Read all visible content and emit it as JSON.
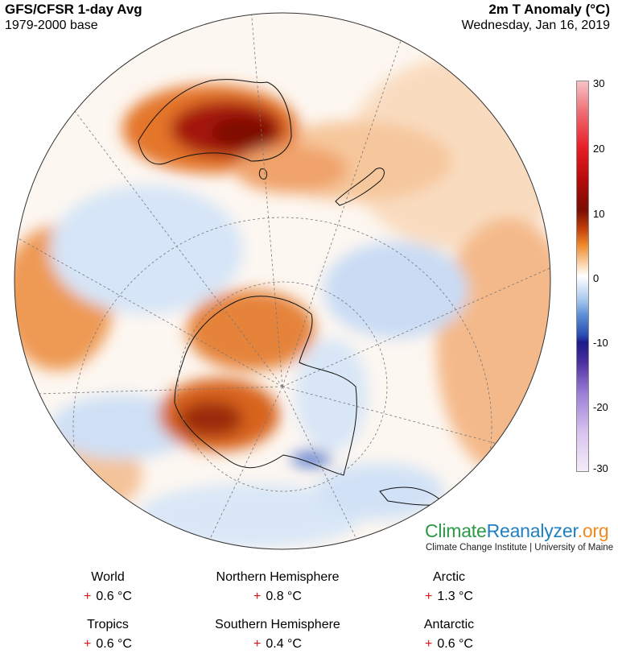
{
  "header": {
    "title_left": "GFS/CFSR 1-day Avg",
    "subtitle_left": "1979-2000 base",
    "title_right": "2m T Anomaly (°C)",
    "subtitle_right": "Wednesday, Jan 16, 2019"
  },
  "colorbar": {
    "ticks": [
      "30",
      "20",
      "10",
      "0",
      "-10",
      "-20",
      "-30"
    ]
  },
  "logo": {
    "part1": "Climate",
    "part2": "Reanalyzer",
    "part3": ".org",
    "tagline": "Climate Change Institute | University of Maine"
  },
  "stats": [
    {
      "label": "World",
      "sign": "+",
      "value": "0.6 °C"
    },
    {
      "label": "Northern Hemisphere",
      "sign": "+",
      "value": "0.8 °C"
    },
    {
      "label": "Arctic",
      "sign": "+",
      "value": "1.3 °C"
    },
    {
      "label": "Tropics",
      "sign": "+",
      "value": "0.6 °C"
    },
    {
      "label": "Southern Hemisphere",
      "sign": "+",
      "value": "0.4 °C"
    },
    {
      "label": "Antarctic",
      "sign": "+",
      "value": "0.6 °C"
    }
  ],
  "colors": {
    "warm_strong": "#8b0a04",
    "warm": "#d8600e",
    "warm_light": "#f7c89a",
    "cool_light": "#c8dcf4",
    "cool": "#6f9ad9"
  }
}
